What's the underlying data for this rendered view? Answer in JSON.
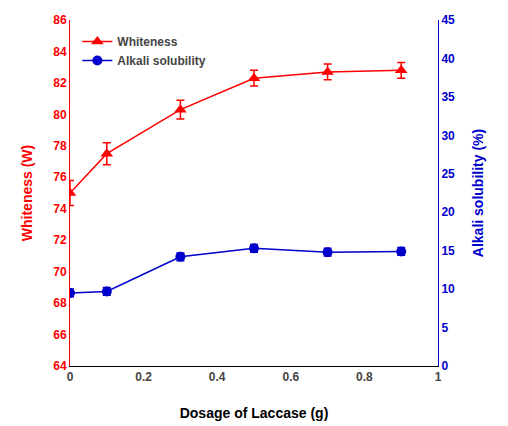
{
  "chart_data": {
    "type": "line",
    "xlabel": "Dosage of Laccase (g)",
    "ylabel": "Whiteness (W)",
    "y2label": "Alkali solubility (%)",
    "x": [
      0.0,
      0.1,
      0.3,
      0.5,
      0.7,
      0.9
    ],
    "series": [
      {
        "name": "Whiteness",
        "color": "#ff0000",
        "marker": "triangle",
        "axis": "y",
        "values": [
          75.0,
          77.5,
          80.3,
          82.3,
          82.7,
          82.8
        ],
        "errors": [
          0.8,
          0.7,
          0.6,
          0.5,
          0.5,
          0.5
        ]
      },
      {
        "name": "Alkali solubility",
        "color": "#0000cc",
        "marker": "circle",
        "axis": "y2",
        "values": [
          9.5,
          9.7,
          14.2,
          15.3,
          14.8,
          14.9
        ],
        "errors": [
          0.5,
          0.5,
          0.5,
          0.5,
          0.5,
          0.5
        ]
      }
    ],
    "xlim": [
      0.0,
      1.0
    ],
    "xticks": [
      0.0,
      0.2,
      0.4,
      0.6,
      0.8,
      1.0
    ],
    "ylim": [
      64,
      86
    ],
    "yticks": [
      64,
      66,
      68,
      70,
      72,
      74,
      76,
      78,
      80,
      82,
      84,
      86
    ],
    "y2lim": [
      0,
      45
    ],
    "y2ticks": [
      0,
      5,
      10,
      15,
      20,
      25,
      30,
      35,
      40,
      45
    ],
    "grid": false,
    "legend": "upper left"
  }
}
